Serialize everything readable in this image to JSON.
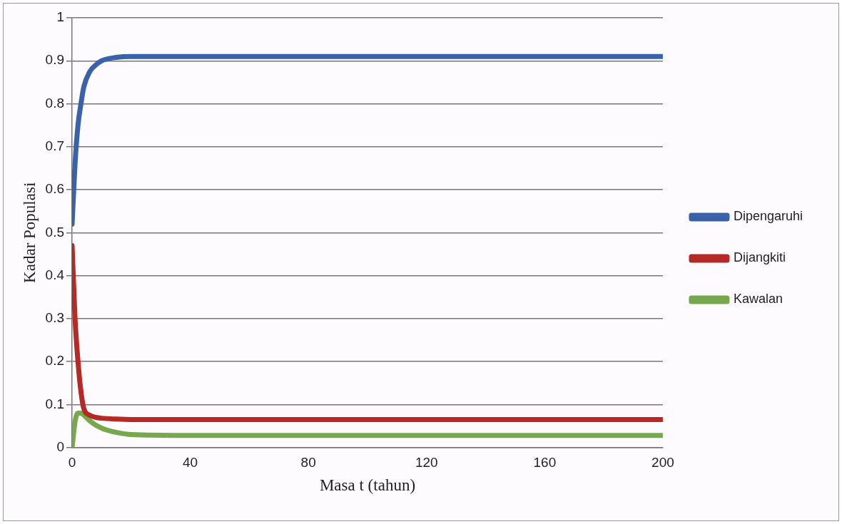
{
  "chart_data": {
    "type": "line",
    "xlabel": "Masa t (tahun)",
    "ylabel": "Kadar Populasi",
    "xlim": [
      0,
      200
    ],
    "xticks": [
      0,
      40,
      80,
      120,
      160,
      200
    ],
    "ylim": [
      0,
      1
    ],
    "yticks": [
      0,
      0.1,
      0.2,
      0.3,
      0.4,
      0.5,
      0.6,
      0.7,
      0.8,
      0.9,
      1
    ],
    "grid": "y",
    "legend": "right",
    "marker": "none",
    "line_style": "solid",
    "series": [
      {
        "name": "Dipengaruhi",
        "color": "#3a62ab",
        "x": [
          0,
          1,
          2,
          3,
          4,
          6,
          8,
          10,
          15,
          20,
          40,
          80,
          120,
          160,
          200
        ],
        "values": [
          0.52,
          0.66,
          0.75,
          0.8,
          0.84,
          0.875,
          0.89,
          0.9,
          0.908,
          0.91,
          0.91,
          0.91,
          0.91,
          0.91,
          0.91
        ]
      },
      {
        "name": "Dijangkiti",
        "color": "#b52a25",
        "x": [
          0,
          1,
          2,
          3,
          4,
          6,
          8,
          10,
          15,
          20,
          40,
          80,
          120,
          160,
          200
        ],
        "values": [
          0.47,
          0.3,
          0.2,
          0.13,
          0.09,
          0.075,
          0.07,
          0.068,
          0.066,
          0.065,
          0.065,
          0.065,
          0.065,
          0.065,
          0.065
        ]
      },
      {
        "name": "Kawalan",
        "color": "#78a84c",
        "x": [
          0,
          1,
          2,
          3,
          4,
          6,
          8,
          10,
          12,
          15,
          20,
          40,
          80,
          120,
          160,
          200
        ],
        "values": [
          0,
          0.06,
          0.08,
          0.08,
          0.075,
          0.062,
          0.052,
          0.045,
          0.04,
          0.035,
          0.03,
          0.028,
          0.028,
          0.028,
          0.028,
          0.028
        ]
      }
    ]
  }
}
